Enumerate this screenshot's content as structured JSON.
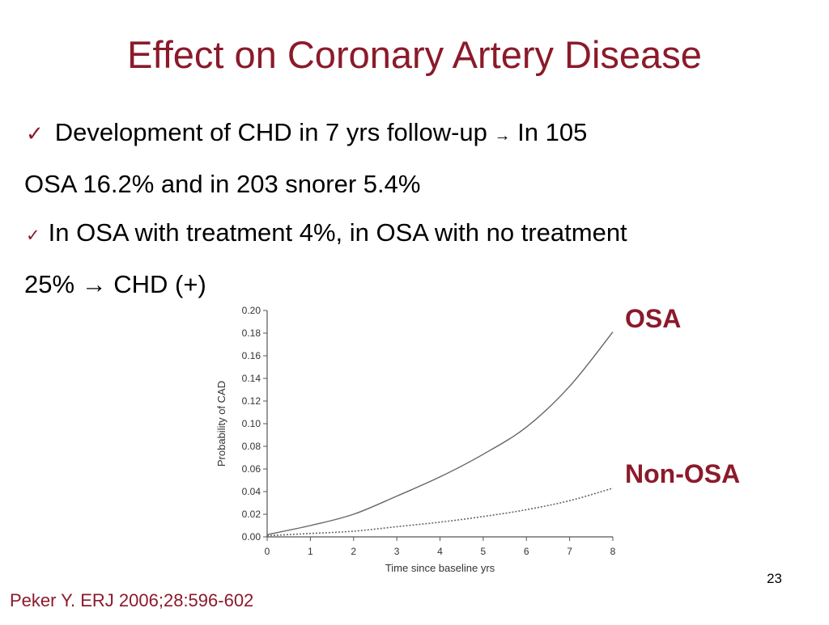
{
  "slide": {
    "title": "Effect on Coronary Artery Disease",
    "bullets": [
      {
        "check": "✓",
        "line1_a": "Development of CHD in 7 yrs follow-up",
        "arrow": "→",
        "line1_b": "In 105",
        "line2": "OSA 16.2% and in 203 snorer 5.4%"
      },
      {
        "check": "✓",
        "line1": "In OSA with treatment 4%, in OSA with no treatment",
        "line2": "25% → CHD (+)"
      }
    ],
    "page_number": "23",
    "citation": "Peker Y. ERJ 2006;28:596-602"
  },
  "chart_data": {
    "type": "line",
    "xlabel": "Time since baseline  yrs",
    "ylabel": "Probability of CAD",
    "xlim": [
      0,
      8
    ],
    "ylim": [
      0,
      0.2
    ],
    "xticks": [
      "0",
      "1",
      "2",
      "3",
      "4",
      "5",
      "6",
      "7",
      "8"
    ],
    "yticks": [
      "0.00",
      "0.02",
      "0.04",
      "0.06",
      "0.08",
      "0.10",
      "0.12",
      "0.14",
      "0.16",
      "0.18",
      "0.20"
    ],
    "x": [
      0,
      1,
      2,
      3,
      4,
      5,
      6,
      7,
      8
    ],
    "series": [
      {
        "name": "OSA",
        "style": "solid",
        "values": [
          0.002,
          0.01,
          0.02,
          0.036,
          0.053,
          0.073,
          0.097,
          0.133,
          0.181
        ]
      },
      {
        "name": "Non-OSA",
        "style": "dotted",
        "values": [
          0.001,
          0.003,
          0.005,
          0.009,
          0.013,
          0.018,
          0.024,
          0.032,
          0.043
        ]
      }
    ],
    "colors": {
      "axis": "#555555",
      "line": "#666666",
      "label": "#8b1a2b"
    }
  }
}
